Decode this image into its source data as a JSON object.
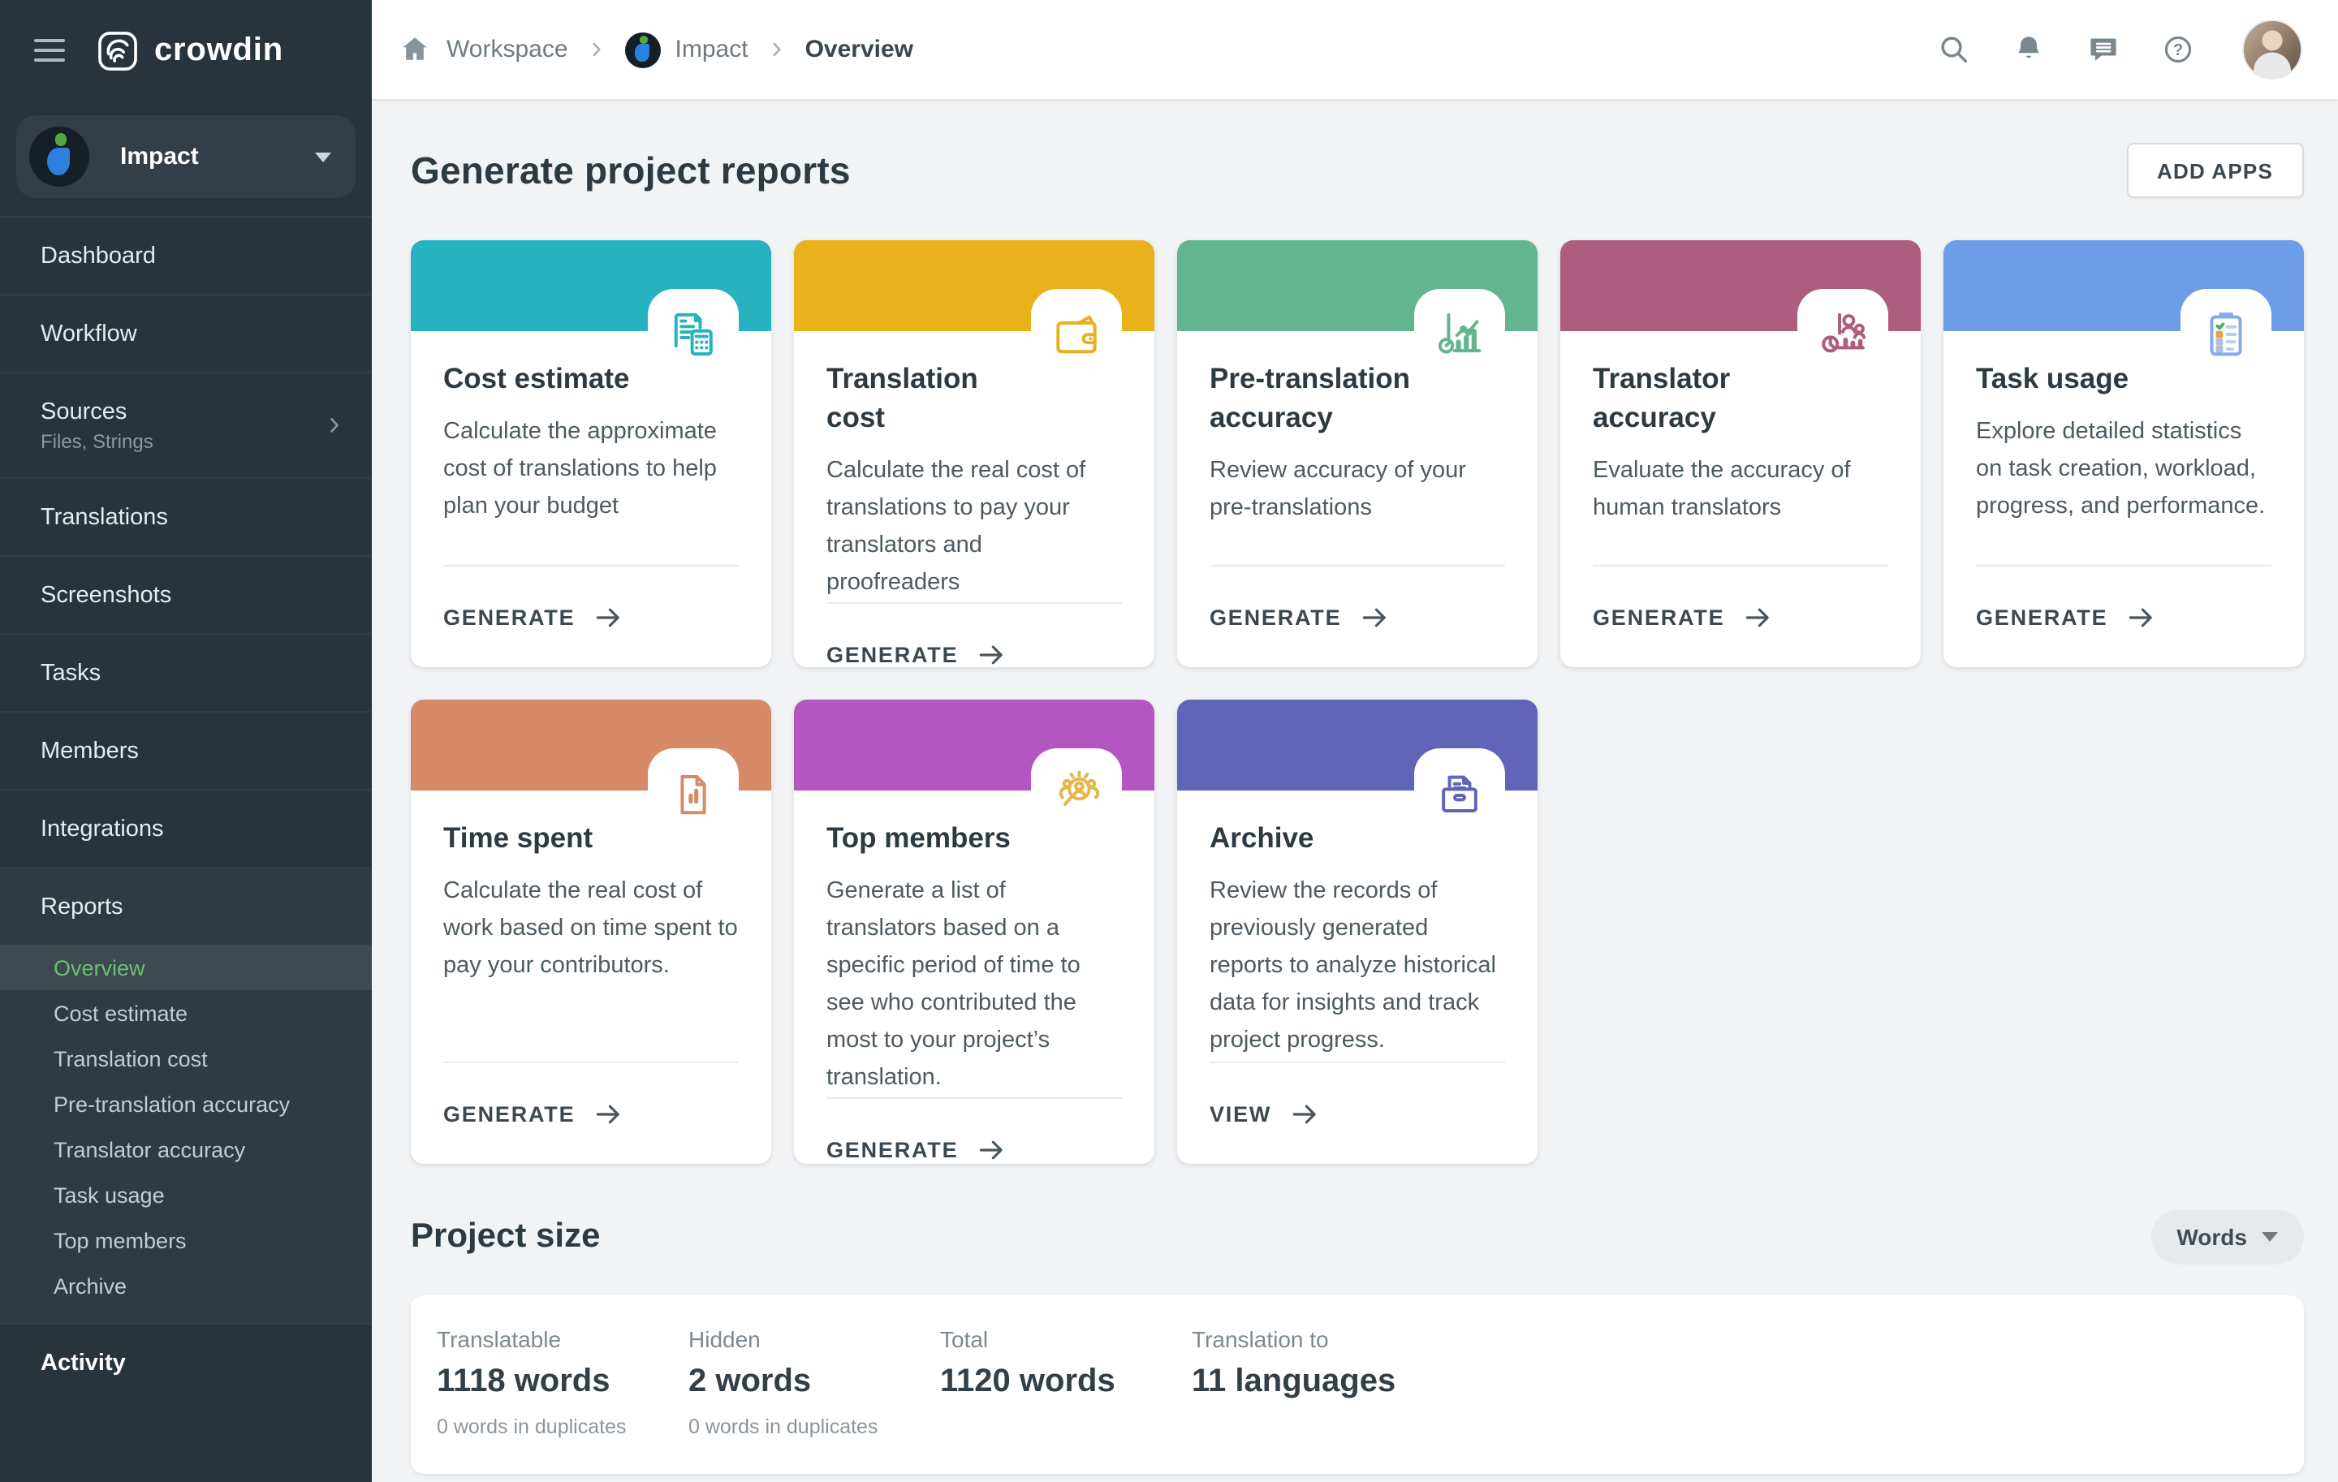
{
  "brand": {
    "name": "crowdin"
  },
  "theme": {
    "sidebar_bg": "#28343c",
    "active_green": "#6dbf73",
    "content_bg": "#f1f3f5"
  },
  "topbar": {
    "breadcrumb": {
      "0": {
        "label": "Workspace"
      },
      "1": {
        "label": "Impact"
      },
      "2": {
        "label": "Overview"
      }
    }
  },
  "sidebar": {
    "project": {
      "name": "Impact"
    },
    "items": [
      {
        "label": "Dashboard"
      },
      {
        "label": "Workflow"
      },
      {
        "label": "Sources",
        "sub": "Files, Strings",
        "chevron": true
      },
      {
        "label": "Translations"
      },
      {
        "label": "Screenshots"
      },
      {
        "label": "Tasks"
      },
      {
        "label": "Members"
      },
      {
        "label": "Integrations"
      }
    ],
    "reports": {
      "label": "Reports",
      "subitems": [
        {
          "label": "Overview",
          "active": true
        },
        {
          "label": "Cost estimate"
        },
        {
          "label": "Translation cost"
        },
        {
          "label": "Pre-translation accuracy"
        },
        {
          "label": "Translator accuracy"
        },
        {
          "label": "Task usage"
        },
        {
          "label": "Top members"
        },
        {
          "label": "Archive"
        }
      ]
    },
    "footer_item": {
      "label": "Activity"
    }
  },
  "main": {
    "title": "Generate project reports",
    "add_apps_label": "ADD APPS",
    "cards": [
      {
        "title": "Cost estimate",
        "description": "Calculate the approximate cost of translations to help plan your budget",
        "action": "GENERATE",
        "color": "#27b2bf",
        "icon": "cost-estimate"
      },
      {
        "title": "Translation cost",
        "description": "Calculate the real cost of translations to pay your translators and proofreaders",
        "action": "GENERATE",
        "color": "#e9b11c",
        "icon": "wallet"
      },
      {
        "title": "Pre-translation accuracy",
        "description": "Review accuracy of your pre-translations",
        "action": "GENERATE",
        "color": "#63b591",
        "icon": "accuracy-chart"
      },
      {
        "title": "Translator accuracy",
        "description": "Evaluate the accuracy of human translators",
        "action": "GENERATE",
        "color": "#ad5e7e",
        "icon": "people-chart"
      },
      {
        "title": "Task usage",
        "description": "Explore detailed statistics on task creation, workload, progress, and performance.",
        "action": "GENERATE",
        "color": "#6d9de9",
        "icon": "clipboard"
      },
      {
        "title": "Time spent",
        "description": "Calculate the real cost of work based on time spent to pay your contributors.",
        "action": "GENERATE",
        "color": "#d78a68",
        "icon": "document-bars"
      },
      {
        "title": "Top members",
        "description": "Generate a list of translators based on a specific period of time to see who contributed the most to your project’s translation.",
        "action": "GENERATE",
        "color": "#b356c2",
        "icon": "people-magnifier",
        "icon_color": "#e5b64b"
      },
      {
        "title": "Archive",
        "description": "Review the records of previously generated reports to analyze historical data for insights and track project progress.",
        "action": "VIEW",
        "color": "#6165b8",
        "icon": "archive-box"
      }
    ],
    "project_size": {
      "title": "Project size",
      "unit_selector": "Words",
      "stats": [
        {
          "label": "Translatable",
          "value": "1118 words",
          "note": "0 words in duplicates"
        },
        {
          "label": "Hidden",
          "value": "2 words",
          "note": "0 words in duplicates"
        },
        {
          "label": "Total",
          "value": "1120 words",
          "note": ""
        },
        {
          "label": "Translation to",
          "value": "11 languages",
          "note": ""
        }
      ]
    }
  }
}
